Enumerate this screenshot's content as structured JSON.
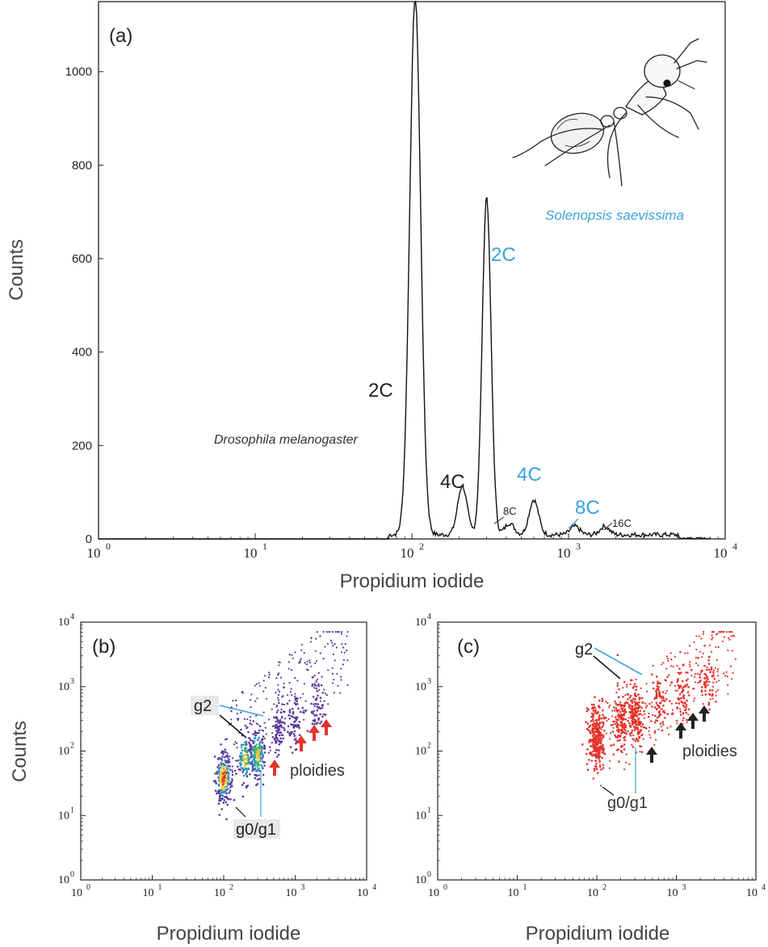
{
  "colors": {
    "blue": "#3ba3dc",
    "black": "#222222",
    "red": "#e3322b",
    "purple": "#5a3a9a",
    "gray_box": "#e8e8e8"
  },
  "icons": [
    "ant-illustration",
    "arrow-icon"
  ],
  "chart_data": [
    {
      "panel": "(a)",
      "type": "line",
      "xlabel": "Propidium iodide",
      "ylabel": "Counts",
      "xscale": "log",
      "xlim": [
        1,
        10000
      ],
      "ylim": [
        0,
        1150
      ],
      "x_tick_labels": [
        "10",
        "10",
        "10",
        "10",
        "10"
      ],
      "x_tick_exponents": [
        "0",
        "1",
        "2",
        "3",
        "4"
      ],
      "y_tick_labels": [
        "0",
        "200",
        "400",
        "600",
        "800",
        "1000"
      ],
      "y_ticks": [
        0,
        200,
        400,
        600,
        800,
        1000
      ],
      "peaks": [
        {
          "x": 105,
          "y": 1150,
          "label": "2C",
          "species": "Drosophila melanogaster"
        },
        {
          "x": 210,
          "y": 105,
          "label": "4C",
          "species": "Drosophila melanogaster"
        },
        {
          "x": 420,
          "y": 25,
          "label": "8C",
          "species": "Drosophila melanogaster"
        },
        {
          "x": 300,
          "y": 725,
          "label": "2C",
          "species": "Solenopsis saevissima"
        },
        {
          "x": 600,
          "y": 75,
          "label": "4C",
          "species": "Solenopsis saevissima"
        },
        {
          "x": 1100,
          "y": 18,
          "label": "8C",
          "species": "Solenopsis saevissima"
        },
        {
          "x": 1700,
          "y": 18,
          "label": "16C",
          "species": "Drosophila melanogaster"
        }
      ],
      "annotations": {
        "drosophila": "Drosophila melanogaster",
        "solenopsis": "Solenopsis saevissima",
        "dm_2c": "2C",
        "dm_4c": "4C",
        "dm_8c": "8C",
        "dm_16c": "16C",
        "ss_2c": "2C",
        "ss_4c": "4C",
        "ss_8c": "8C"
      }
    },
    {
      "panel": "(b)",
      "type": "scatter",
      "xlabel": "Propidium iodide",
      "ylabel": "Counts",
      "xscale": "log",
      "yscale": "log",
      "xlim": [
        1,
        10000
      ],
      "ylim": [
        1,
        10000
      ],
      "clusters": [
        {
          "x": 100,
          "y": 35
        },
        {
          "x": 200,
          "y": 70
        },
        {
          "x": 300,
          "y": 80
        },
        {
          "x": 600,
          "y": 180
        },
        {
          "x": 1000,
          "y": 250
        },
        {
          "x": 2000,
          "y": 400
        }
      ],
      "annotations": {
        "g2": "g2",
        "g0g1": "g0/g1",
        "ploidies": "ploidies"
      }
    },
    {
      "panel": "(c)",
      "type": "scatter",
      "xlabel": "Propidium iodide",
      "xscale": "log",
      "yscale": "log",
      "xlim": [
        1,
        10000
      ],
      "ylim": [
        1,
        10000
      ],
      "clusters": [
        {
          "x": 100,
          "y": 150
        },
        {
          "x": 200,
          "y": 250
        },
        {
          "x": 300,
          "y": 300
        },
        {
          "x": 600,
          "y": 450
        },
        {
          "x": 1200,
          "y": 700
        },
        {
          "x": 2500,
          "y": 1000
        }
      ],
      "annotations": {
        "g2": "g2",
        "g0g1": "g0/g1",
        "ploidies": "ploidies"
      }
    }
  ]
}
